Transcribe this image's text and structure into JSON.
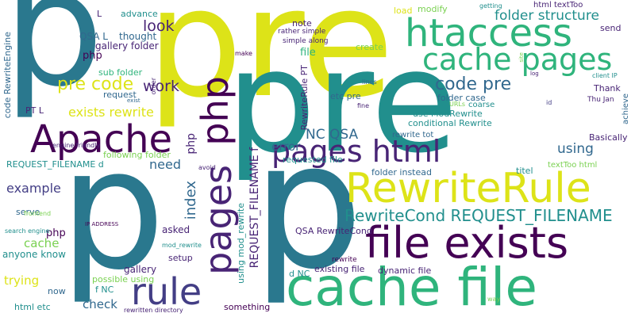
{
  "colors": {
    "yellow": "#dde318",
    "green": "#2fb47c",
    "light_green": "#7ad151",
    "teal": "#218f8d",
    "blue": "#2a788e",
    "dark_blue": "#31688e",
    "indigo": "#433e85",
    "purple": "#440154",
    "deep_purple": "#482475",
    "turquoise": "#1fa187"
  },
  "words": {
    "p_big_left": "p",
    "pre_top": "pre",
    "pre_center": "pre",
    "p_center": "p",
    "p_bottom_left": "p",
    "p_bottom_center": "p",
    "htaccess": "htaccess",
    "cache_pages": "cache pages",
    "cache_file": "cache file",
    "file_exists": "file exists",
    "rewriterule": "RewriteRule",
    "apache": "Apache",
    "pages_html": "pages html",
    "rule": "rule",
    "pages": "pages",
    "php_vertical": "php",
    "code_pre": "code pre",
    "pre_code": "pre code",
    "rewritecond": "RewriteCond REQUEST_FILENAME",
    "folder_structure": "folder structure",
    "look": "look",
    "work": "work",
    "exists_rewrite": "exists rewrite",
    "nc_qsa": "NC QSA",
    "using": "using",
    "error": "error",
    "index": "index",
    "need": "need",
    "example": "example",
    "cache": "cache",
    "trying": "trying",
    "check": "check",
    "asked": "asked",
    "gallery": "gallery",
    "anyone_know": "anyone know",
    "serve": "serve",
    "php_small": "php",
    "php_small2": "php",
    "qsa_l": "QSA L",
    "advance": "advance",
    "thought": "thought",
    "gallery_folder": "gallery folder",
    "sub_folder": "sub folder",
    "request": "request",
    "pt_l": "PT L",
    "code_rewriteengine": "code RewriteEngine",
    "l": "L",
    "note": "note",
    "rather_simple": "rather simple",
    "simple_along": "simple along",
    "make": "make",
    "file": "file",
    "create": "create",
    "load": "load",
    "modify": "modify",
    "getting": "getting",
    "html_texttoo": "html textToo",
    "send": "send",
    "site": "site",
    "log": "log",
    "client_ip": "client IP",
    "thank": "Thank",
    "thu_jan": "Thu Jan",
    "achieve": "achieve",
    "id": "id",
    "lines": "lines",
    "etc_pre": "etc pre",
    "folder_case": "folder case",
    "coarse": "coarse",
    "urls": "URLs",
    "fine": "fine",
    "use_modrewrite": "use ModRewrite",
    "conditional_rewrite": "conditional Rewrite",
    "rewrite_tot": "rewrite tot",
    "requested_file": "requested file",
    "folder_instead": "folder instead",
    "titel": "titel",
    "texttoo_html": "textToo html",
    "basically": "Basically",
    "rewriterule_pt": "RewriteRule PT",
    "request_filename_f": "REQUEST_FILENAME f",
    "request_filename_d": "REQUEST_FILENAME d",
    "engine_friendly": "engine friendly",
    "following_folder": "following folder",
    "avoid": "avoid",
    "frontend": "frontend",
    "ip_address": "IP ADDRESS",
    "search_engine": "search engine",
    "mod_rewrite": "mod_rewrite",
    "setup": "setup",
    "using_mod_rewrite": "using mod_rewrite",
    "qsa_rewritecond": "QSA RewriteCond",
    "rewrite": "rewrite",
    "existing_file": "existing file",
    "dynamic_file": "dynamic file",
    "d_nc": "d NC",
    "possible_using": "possible using",
    "f_nc": "f NC",
    "now": "now",
    "html_etc": "html etc",
    "something": "something",
    "rewritten_directory": "rewritten directory",
    "way": "way",
    "exist": "exist",
    "order": "order"
  }
}
